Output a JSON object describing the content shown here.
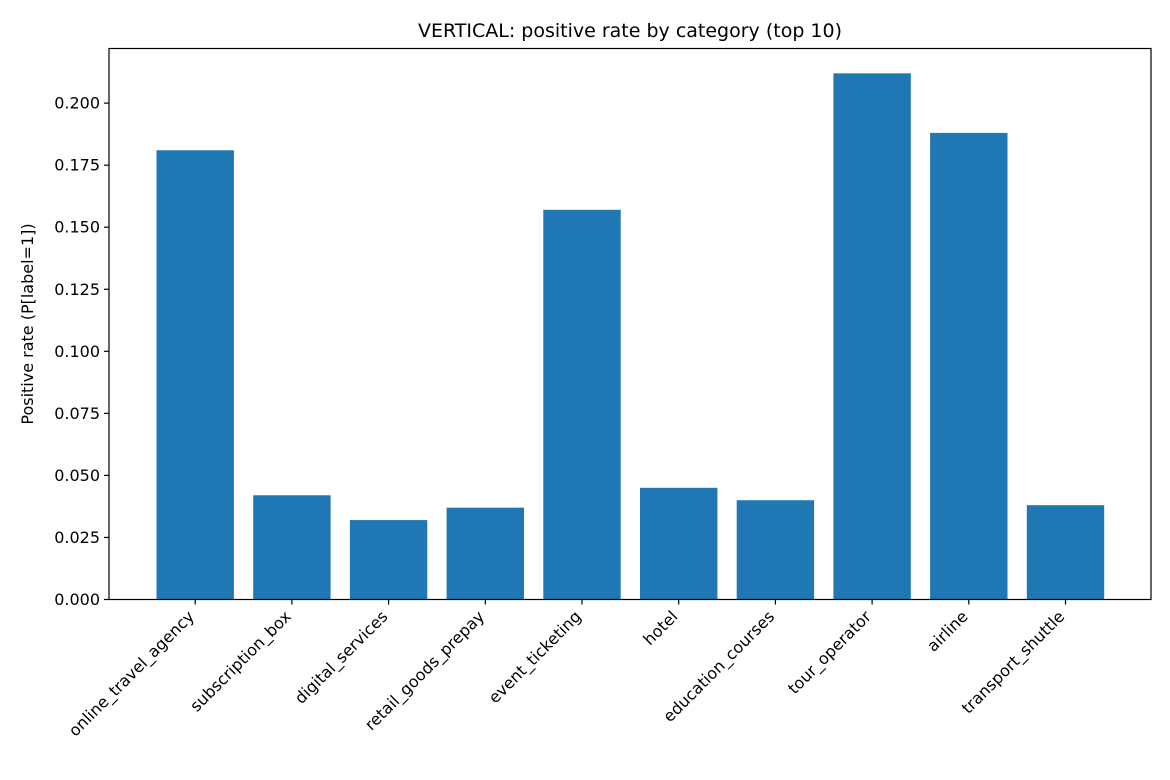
{
  "chart_data": {
    "type": "bar",
    "title": "VERTICAL: positive rate by category (top 10)",
    "xlabel": "",
    "ylabel": "Positive rate (P[label=1])",
    "categories": [
      "online_travel_agency",
      "subscription_box",
      "digital_services",
      "retail_goods_prepay",
      "event_ticketing",
      "hotel",
      "education_courses",
      "tour_operator",
      "airline",
      "transport_shuttle"
    ],
    "values": [
      0.181,
      0.042,
      0.032,
      0.037,
      0.157,
      0.045,
      0.04,
      0.212,
      0.188,
      0.038
    ],
    "ylim": [
      0,
      0.222
    ],
    "yticks": [
      0.0,
      0.025,
      0.05,
      0.075,
      0.1,
      0.125,
      0.15,
      0.175,
      0.2
    ],
    "ytick_labels": [
      "0.000",
      "0.025",
      "0.050",
      "0.075",
      "0.100",
      "0.125",
      "0.150",
      "0.175",
      "0.200"
    ],
    "bar_color": "#1f77b4",
    "grid": false,
    "legend": "none"
  }
}
